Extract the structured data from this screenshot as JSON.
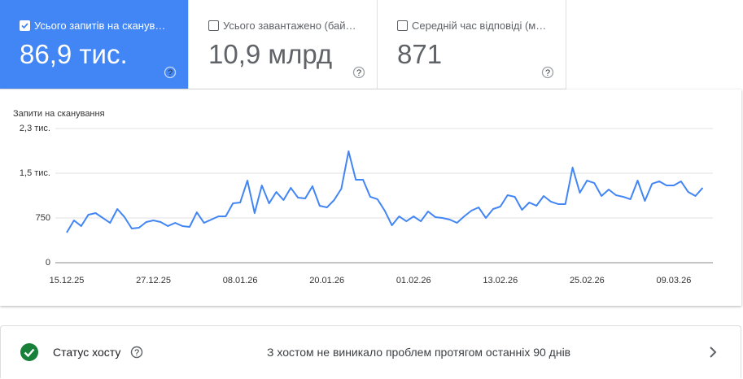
{
  "metrics": [
    {
      "title": "Усього запитів на сканув…",
      "value": "86,9 тис.",
      "checked": true
    },
    {
      "title": "Усього завантажено (бай…",
      "value": "10,9 млрд",
      "checked": false
    },
    {
      "title": "Середній час відповіді (м…",
      "value": "871",
      "checked": false
    }
  ],
  "chart_data": {
    "type": "line",
    "title": "Запити на сканування",
    "categories": [
      "15.12.25",
      null,
      null,
      null,
      null,
      null,
      null,
      null,
      null,
      null,
      null,
      null,
      "27.12.25",
      null,
      null,
      null,
      null,
      null,
      null,
      null,
      null,
      null,
      null,
      null,
      "08.01.26",
      null,
      null,
      null,
      null,
      null,
      null,
      null,
      null,
      null,
      null,
      null,
      "20.01.26",
      null,
      null,
      null,
      null,
      null,
      null,
      null,
      null,
      null,
      null,
      null,
      "01.02.26",
      null,
      null,
      null,
      null,
      null,
      null,
      null,
      null,
      null,
      null,
      null,
      "13.02.26",
      null,
      null,
      null,
      null,
      null,
      null,
      null,
      null,
      null,
      null,
      null,
      "25.02.26",
      null,
      null,
      null,
      null,
      null,
      null,
      null,
      null,
      null,
      null,
      null,
      "09.03.26",
      null,
      null,
      null,
      null
    ],
    "series": [
      {
        "name": "Запити на сканування",
        "color": "#4285f4",
        "values": [
          505,
          709,
          614,
          805,
          832,
          750,
          668,
          900,
          764,
          573,
          586,
          682,
          709,
          682,
          614,
          668,
          614,
          600,
          845,
          668,
          723,
          777,
          777,
          995,
          1009,
          1377,
          832,
          1295,
          995,
          1186,
          1050,
          1255,
          1091,
          1077,
          1282,
          955,
          927,
          1050,
          1241,
          1868,
          1391,
          1391,
          1105,
          1064,
          873,
          627,
          777,
          695,
          777,
          695,
          859,
          764,
          750,
          723,
          668,
          777,
          873,
          927,
          750,
          900,
          941,
          1132,
          1105,
          886,
          1009,
          955,
          1118,
          1023,
          982,
          982,
          1595,
          1173,
          1377,
          1336,
          1118,
          1227,
          1132,
          1105,
          1064,
          1377,
          1036,
          1323,
          1364,
          1295,
          1295,
          1364,
          1186,
          1118,
          1255
        ]
      }
    ],
    "ylim": [
      0,
      2250
    ],
    "yticks": [
      0,
      750,
      {
        "value": 1500,
        "label": "1,5 тис."
      },
      {
        "value": 2250,
        "label": "2,3 тис."
      }
    ],
    "grid": true
  },
  "host_status": {
    "label": "Статус хосту",
    "message": "З хостом не виникало проблем протягом останніх 90 днів",
    "ok": true
  }
}
